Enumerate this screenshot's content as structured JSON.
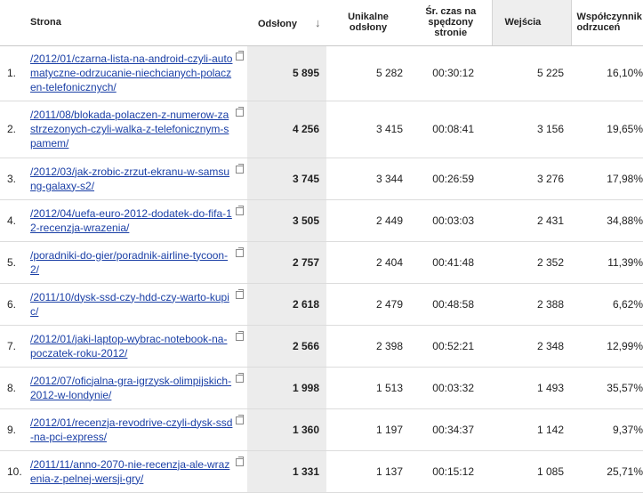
{
  "headers": {
    "page": "Strona",
    "views": "Odsłony",
    "sort_icon": "down-arrow-icon",
    "unique_l1": "Unikalne",
    "unique_l2": "odsłony",
    "time_l1": "Śr. czas na",
    "time_l2": "spędzony",
    "time_l3": "stronie",
    "entries": "Wejścia",
    "bounce_l1": "Współczynnik",
    "bounce_l2": "odrzuceń"
  },
  "rows": [
    {
      "num": "1.",
      "page": "/2012/01/czarna-lista-na-android-czyli-automatyczne-odrzucanie-niechcianych-polaczen-telefonicznych/",
      "views": "5 895",
      "unique": "5 282",
      "time": "00:30:12",
      "entries": "5 225",
      "bounce": "16,10%"
    },
    {
      "num": "2.",
      "page": "/2011/08/blokada-polaczen-z-numerow-zastrzezonych-czyli-walka-z-telefonicznym-spamem/",
      "views": "4 256",
      "unique": "3 415",
      "time": "00:08:41",
      "entries": "3 156",
      "bounce": "19,65%"
    },
    {
      "num": "3.",
      "page": "/2012/03/jak-zrobic-zrzut-ekranu-w-samsung-galaxy-s2/",
      "views": "3 745",
      "unique": "3 344",
      "time": "00:26:59",
      "entries": "3 276",
      "bounce": "17,98%"
    },
    {
      "num": "4.",
      "page": "/2012/04/uefa-euro-2012-dodatek-do-fifa-12-recenzja-wrazenia/",
      "views": "3 505",
      "unique": "2 449",
      "time": "00:03:03",
      "entries": "2 431",
      "bounce": "34,88%"
    },
    {
      "num": "5.",
      "page": "/poradniki-do-gier/poradnik-airline-tycoon-2/",
      "views": "2 757",
      "unique": "2 404",
      "time": "00:41:48",
      "entries": "2 352",
      "bounce": "11,39%"
    },
    {
      "num": "6.",
      "page": "/2011/10/dysk-ssd-czy-hdd-czy-warto-kupic/",
      "views": "2 618",
      "unique": "2 479",
      "time": "00:48:58",
      "entries": "2 388",
      "bounce": "6,62%"
    },
    {
      "num": "7.",
      "page": "/2012/01/jaki-laptop-wybrac-notebook-na-poczatek-roku-2012/",
      "views": "2 566",
      "unique": "2 398",
      "time": "00:52:21",
      "entries": "2 348",
      "bounce": "12,99%"
    },
    {
      "num": "8.",
      "page": "/2012/07/oficjalna-gra-igrzysk-olimpijskich-2012-w-londynie/",
      "views": "1 998",
      "unique": "1 513",
      "time": "00:03:32",
      "entries": "1 493",
      "bounce": "35,57%"
    },
    {
      "num": "9.",
      "page": "/2012/01/recenzja-revodrive-czyli-dysk-ssd-na-pci-express/",
      "views": "1 360",
      "unique": "1 197",
      "time": "00:34:37",
      "entries": "1 142",
      "bounce": "9,37%"
    },
    {
      "num": "10.",
      "page": "/2011/11/anno-2070-nie-recenzja-ale-wrazenia-z-pelnej-wersji-gry/",
      "views": "1 331",
      "unique": "1 137",
      "time": "00:15:12",
      "entries": "1 085",
      "bounce": "25,71%"
    }
  ]
}
